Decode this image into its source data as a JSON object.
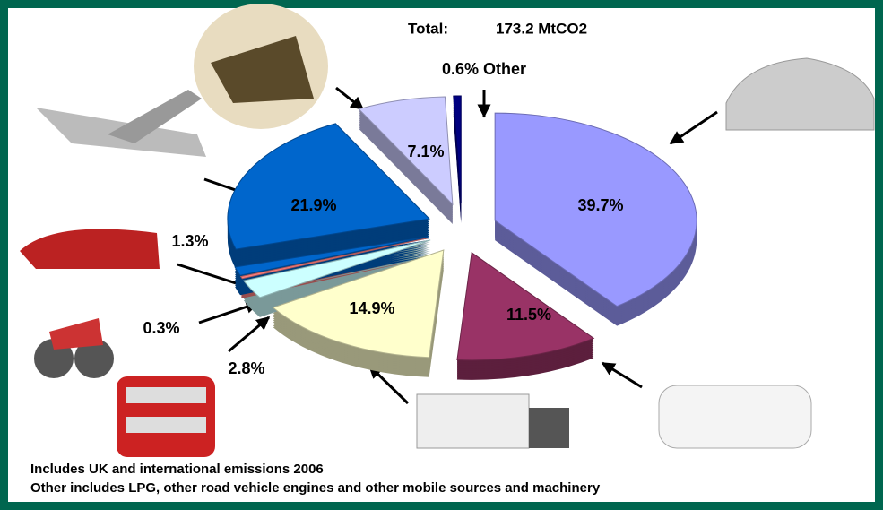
{
  "chart_data": {
    "type": "pie",
    "total_label": "Total:",
    "total_value": "173.2 MtCO2",
    "values": [
      39.7,
      11.5,
      14.9,
      2.8,
      0.3,
      1.3,
      21.9,
      7.1,
      0.6
    ],
    "value_labels": [
      "39.7%",
      "11.5%",
      "14.9%",
      "2.8%",
      "0.3%",
      "1.3%",
      "21.9%",
      "7.1%",
      "0.6% Other"
    ],
    "colors": [
      "#9999ff",
      "#993366",
      "#ffffcc",
      "#ccffff",
      "#ff8080",
      "#0066cc",
      "#0066cc",
      "#ccccff",
      "#000080"
    ],
    "notes": [
      "Includes UK and international emissions 2006",
      "Other includes LPG, other road vehicle engines and other mobile sources and machinery"
    ]
  }
}
